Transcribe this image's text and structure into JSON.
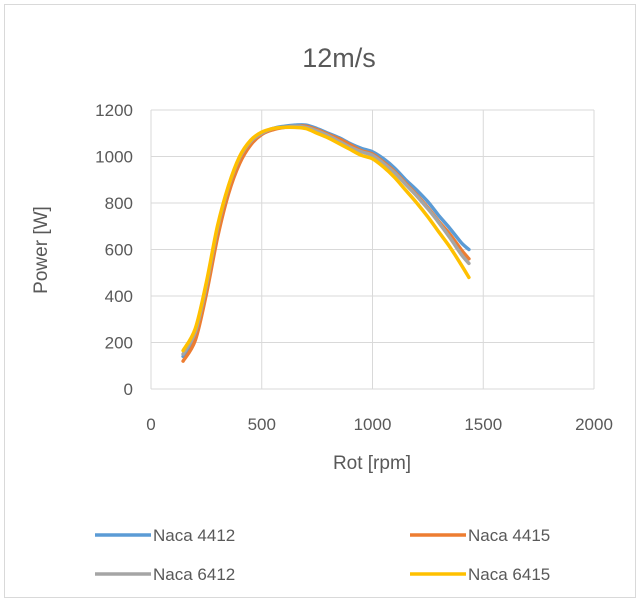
{
  "chart_data": {
    "type": "line",
    "title": "12m/s",
    "xlabel": "Rot [rpm]",
    "ylabel": "Power [W]",
    "xlim": [
      0,
      2000
    ],
    "ylim": [
      0,
      1200
    ],
    "x_ticks": [
      "0",
      "500",
      "1000",
      "1500",
      "2000"
    ],
    "y_ticks": [
      "0",
      "200",
      "400",
      "600",
      "800",
      "1000",
      "1200"
    ],
    "grid": true,
    "legend_position": "bottom",
    "series": [
      {
        "name": "Naca 4412",
        "color": "#5B9BD5",
        "x": [
          145,
          200,
          250,
          300,
          350,
          400,
          450,
          500,
          550,
          600,
          650,
          700,
          750,
          800,
          850,
          900,
          950,
          1000,
          1050,
          1100,
          1150,
          1200,
          1250,
          1300,
          1350,
          1400,
          1435
        ],
        "y": [
          140,
          230,
          430,
          680,
          860,
          990,
          1060,
          1100,
          1120,
          1130,
          1135,
          1135,
          1120,
          1100,
          1080,
          1055,
          1035,
          1020,
          990,
          950,
          900,
          855,
          805,
          745,
          690,
          630,
          600
        ]
      },
      {
        "name": "Naca 4415",
        "color": "#ED7D31",
        "x": [
          145,
          200,
          250,
          300,
          350,
          400,
          450,
          500,
          550,
          600,
          650,
          700,
          750,
          800,
          850,
          900,
          950,
          1000,
          1050,
          1100,
          1150,
          1200,
          1250,
          1300,
          1350,
          1400,
          1435
        ],
        "y": [
          120,
          210,
          410,
          650,
          840,
          970,
          1050,
          1095,
          1115,
          1125,
          1130,
          1130,
          1115,
          1095,
          1075,
          1050,
          1025,
          1010,
          975,
          935,
          885,
          835,
          780,
          720,
          665,
          600,
          560
        ]
      },
      {
        "name": "Naca 6412",
        "color": "#A5A5A5",
        "x": [
          145,
          200,
          250,
          300,
          350,
          400,
          450,
          500,
          550,
          600,
          650,
          700,
          750,
          800,
          850,
          900,
          950,
          1000,
          1050,
          1100,
          1150,
          1200,
          1250,
          1300,
          1350,
          1400,
          1435
        ],
        "y": [
          150,
          245,
          445,
          690,
          870,
          995,
          1065,
          1100,
          1120,
          1125,
          1130,
          1125,
          1110,
          1090,
          1065,
          1040,
          1020,
          1005,
          970,
          930,
          880,
          830,
          775,
          715,
          650,
          580,
          540
        ]
      },
      {
        "name": "Naca 6415",
        "color": "#FFC000",
        "x": [
          145,
          200,
          250,
          300,
          350,
          400,
          450,
          500,
          550,
          600,
          650,
          700,
          750,
          800,
          850,
          900,
          950,
          1000,
          1050,
          1100,
          1150,
          1200,
          1250,
          1300,
          1350,
          1400,
          1435
        ],
        "y": [
          165,
          260,
          460,
          700,
          875,
          1000,
          1070,
          1105,
          1120,
          1125,
          1125,
          1120,
          1100,
          1080,
          1055,
          1030,
          1005,
          990,
          955,
          910,
          855,
          800,
          740,
          675,
          610,
          535,
          480
        ]
      }
    ]
  }
}
